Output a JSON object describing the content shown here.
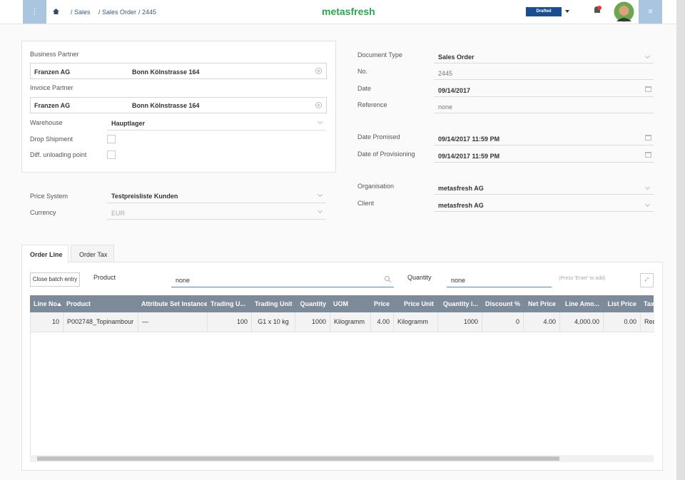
{
  "header": {
    "breadcrumb": [
      "/ Sales",
      "/ Sales Order",
      "/ 2445"
    ],
    "logo": "metasfresh",
    "status": "Drafted"
  },
  "left_panel": {
    "business_partner": {
      "label": "Business Partner",
      "name": "Franzen AG",
      "address": "Bonn Kölnstrasse 164"
    },
    "invoice_partner": {
      "label": "Invoice Partner",
      "name": "Franzen AG",
      "address": "Bonn Kölnstrasse 164"
    },
    "warehouse": {
      "label": "Warehouse",
      "value": "Hauptlager"
    },
    "drop_shipment": {
      "label": "Drop Shipment"
    },
    "diff_unloading_point": {
      "label": "Diff. unloading point"
    }
  },
  "pricing": {
    "price_system": {
      "label": "Price System",
      "value": "Testpreisliste Kunden"
    },
    "currency": {
      "label": "Currency",
      "value": "EUR"
    }
  },
  "right_panel": {
    "fields": [
      {
        "label": "Document Type",
        "value": "Sales Order"
      },
      {
        "label": "No.",
        "value": "2445"
      },
      {
        "label": "Date",
        "value": "09/14/2017"
      },
      {
        "label": "Reference",
        "value": "none"
      },
      {
        "label": "Date Promised",
        "value": "09/14/2017 11:59 PM"
      },
      {
        "label": "Date of Provisioning",
        "value": "09/14/2017 11:59 PM"
      },
      {
        "label": "Organisation",
        "value": "metasfresh AG"
      },
      {
        "label": "Client",
        "value": "metasfresh AG"
      }
    ]
  },
  "tabs": [
    "Order Line",
    "Order Tax"
  ],
  "batch_entry": {
    "button": "Close batch entry",
    "product_label": "Product",
    "product_value": "none",
    "quantity_label": "Quantity",
    "quantity_value": "none",
    "hint": "(Press 'Enter' to add)"
  },
  "table": {
    "columns": [
      "Line No",
      "Product",
      "Attribute Set Instance",
      "Trading U...",
      "Trading Unit",
      "Quantity",
      "UOM",
      "Price",
      "Price Unit",
      "Quantity i...",
      "Discount %",
      "Net Price",
      "Line Amo...",
      "List Price",
      "Tax"
    ],
    "rows": [
      [
        "10",
        "P002748_Topinambour",
        "—",
        "100",
        "G1 x 10 kg",
        "1000",
        "Kilogramm",
        "4.00",
        "Kilogramm",
        "1000",
        "0",
        "4.00",
        "4,000.00",
        "0.00",
        "Red"
      ]
    ]
  }
}
